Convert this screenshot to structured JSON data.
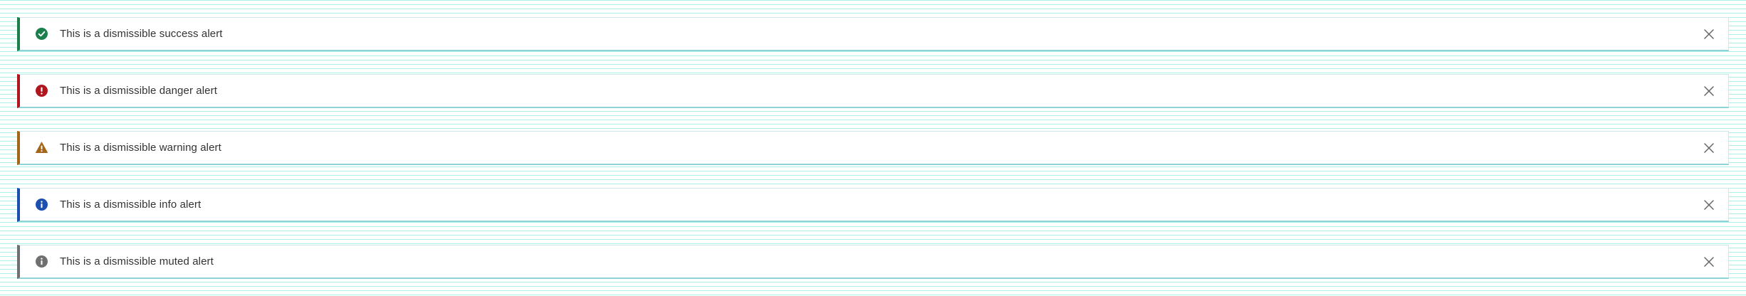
{
  "alerts": [
    {
      "type": "success",
      "icon": "check-circle-icon",
      "color": "#1a7f4b",
      "text": "This is a dismissible success alert"
    },
    {
      "type": "danger",
      "icon": "exclamation-circle-icon",
      "color": "#b0161e",
      "text": "This is a dismissible danger alert"
    },
    {
      "type": "warning",
      "icon": "warning-triangle-icon",
      "color": "#a5661a",
      "text": "This is a dismissible warning alert"
    },
    {
      "type": "info",
      "icon": "info-circle-icon",
      "color": "#1d4fae",
      "text": "This is a dismissible info alert"
    },
    {
      "type": "muted",
      "icon": "info-circle-icon",
      "color": "#707070",
      "text": "This is a dismissible muted alert"
    }
  ],
  "close_icon_color": "#666666"
}
